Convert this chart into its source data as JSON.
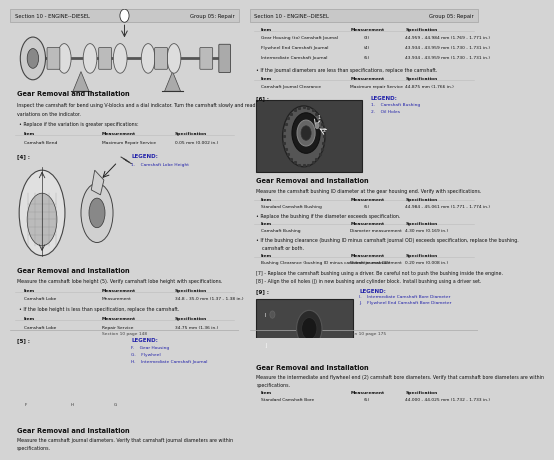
{
  "bg_color": "#d4d4d4",
  "panel_color": "#ffffff",
  "header_color": "#c8c8c8",
  "text_color": "#111111",
  "blue_color": "#2222aa",
  "gray_line": "#aaaaaa",
  "left_header_left": "Section 10 - ENGINE--DIESEL",
  "left_header_right": "Group 05: Repair",
  "right_header_left": "Section 10 - ENGINE--DIESEL",
  "right_header_right": "Group 05: Repair",
  "left_footer_center": "Section 10 page 148",
  "right_footer_center": "Section 10 page 175",
  "fs_header": 3.8,
  "fs_title": 4.8,
  "fs_body": 3.4,
  "fs_small": 3.2,
  "fs_label": 4.0
}
